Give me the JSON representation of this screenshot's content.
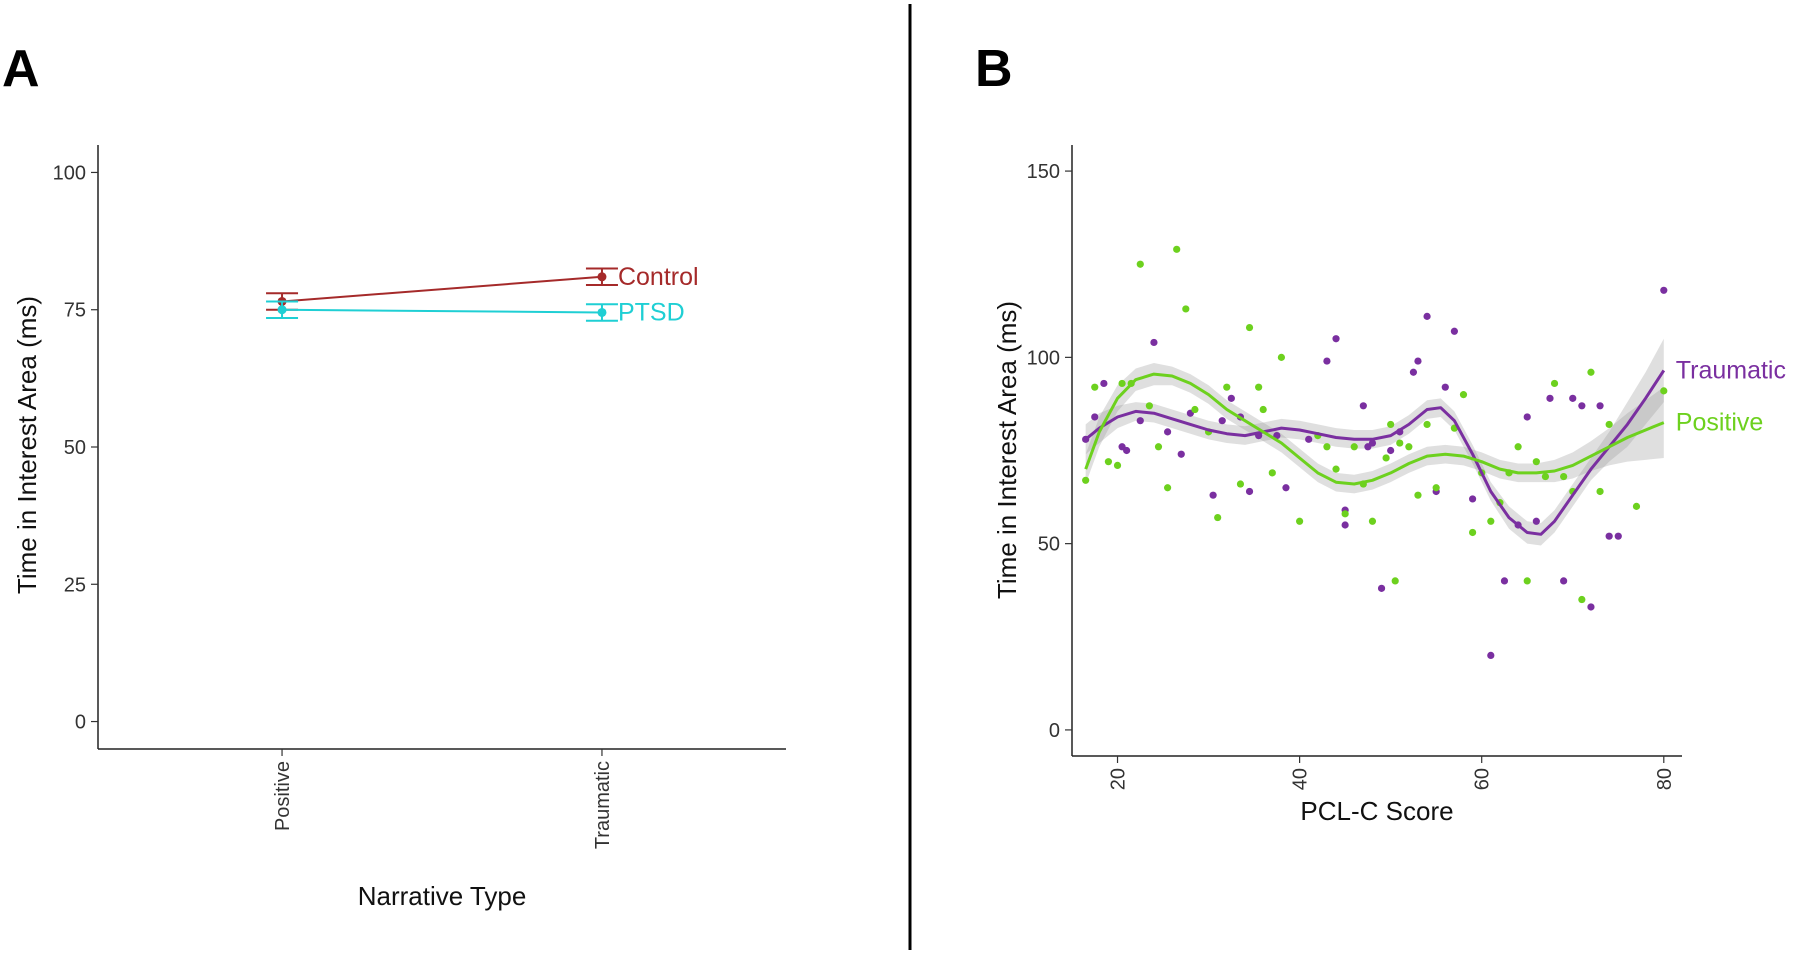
{
  "figure": {
    "divider_color": "#000000"
  },
  "chart_data": [
    {
      "panel_label": "A",
      "type": "line",
      "xlabel": "Narrative Type",
      "ylabel": "Time in Interest Area (ms)",
      "categories": [
        "Positive",
        "Traumatic"
      ],
      "ylim": [
        -5,
        105
      ],
      "yticks": [
        0,
        25,
        50,
        75,
        100
      ],
      "grid": false,
      "error_bars": true,
      "series": [
        {
          "name": "Control",
          "color": "#a52a2a",
          "values": [
            76.5,
            81
          ],
          "errors": [
            1.5,
            1.5
          ]
        },
        {
          "name": "PTSD",
          "color": "#1fcfd4",
          "values": [
            75,
            74.5
          ],
          "errors": [
            1.5,
            1.5
          ]
        }
      ]
    },
    {
      "panel_label": "B",
      "type": "scatter",
      "xlabel": "PCL-C Score",
      "ylabel": "Time in Interest Area (ms)",
      "xlim": [
        15,
        82
      ],
      "ylim": [
        -7,
        157
      ],
      "xticks": [
        20,
        40,
        60,
        80
      ],
      "yticks": [
        0,
        50,
        100,
        150
      ],
      "grid": false,
      "series": [
        {
          "name": "Traumatic",
          "color": "#7a2fa0",
          "points": [
            [
              16.5,
              78
            ],
            [
              17.5,
              84
            ],
            [
              18.5,
              93
            ],
            [
              20.5,
              76
            ],
            [
              21,
              75
            ],
            [
              22.5,
              83
            ],
            [
              24,
              104
            ],
            [
              25.5,
              80
            ],
            [
              27,
              74
            ],
            [
              28,
              85
            ],
            [
              30.5,
              63
            ],
            [
              31.5,
              83
            ],
            [
              32.5,
              89
            ],
            [
              33.5,
              84
            ],
            [
              34.5,
              64
            ],
            [
              35.5,
              79
            ],
            [
              37.5,
              79
            ],
            [
              38.5,
              65
            ],
            [
              41,
              78
            ],
            [
              43,
              99
            ],
            [
              44,
              105
            ],
            [
              45,
              59
            ],
            [
              45,
              55
            ],
            [
              47,
              87
            ],
            [
              47.5,
              76
            ],
            [
              48,
              77
            ],
            [
              49,
              38
            ],
            [
              50,
              75
            ],
            [
              51,
              80
            ],
            [
              52.5,
              96
            ],
            [
              53,
              99
            ],
            [
              54,
              111
            ],
            [
              55,
              64
            ],
            [
              56,
              92
            ],
            [
              57,
              107
            ],
            [
              59,
              62
            ],
            [
              61,
              20
            ],
            [
              62.5,
              40
            ],
            [
              64,
              55
            ],
            [
              65,
              84
            ],
            [
              66,
              56
            ],
            [
              67.5,
              89
            ],
            [
              69,
              40
            ],
            [
              70,
              89
            ],
            [
              71,
              87
            ],
            [
              72,
              33
            ],
            [
              73,
              87
            ],
            [
              74,
              52
            ],
            [
              75,
              52
            ],
            [
              80,
              118
            ]
          ],
          "fit": [
            [
              16.5,
              78
            ],
            [
              18,
              81
            ],
            [
              20,
              84
            ],
            [
              22,
              85.5
            ],
            [
              24,
              85
            ],
            [
              26,
              83.5
            ],
            [
              28,
              82
            ],
            [
              30,
              80.5
            ],
            [
              32,
              79.5
            ],
            [
              34,
              79
            ],
            [
              36,
              80
            ],
            [
              38,
              81
            ],
            [
              40,
              80.5
            ],
            [
              42,
              79.5
            ],
            [
              44,
              78.5
            ],
            [
              46,
              78
            ],
            [
              48,
              78
            ],
            [
              50,
              79
            ],
            [
              52,
              82
            ],
            [
              54,
              86
            ],
            [
              55.5,
              86.5
            ],
            [
              57,
              83
            ],
            [
              59,
              74
            ],
            [
              61,
              64
            ],
            [
              63,
              57
            ],
            [
              65,
              53
            ],
            [
              66.5,
              52.5
            ],
            [
              68,
              56
            ],
            [
              70,
              63
            ],
            [
              72,
              70
            ],
            [
              74,
              76
            ],
            [
              76,
              82
            ],
            [
              78,
              89
            ],
            [
              80,
              96.5
            ]
          ],
          "band_halfwidth": [
            4,
            4,
            3,
            2.5,
            2.5,
            2.5,
            2.5,
            2.5,
            2.5,
            2.5,
            2.5,
            2.5,
            2.5,
            2.5,
            2.5,
            2.5,
            2.5,
            2.5,
            2.5,
            2.5,
            2.5,
            2.5,
            2.5,
            2.5,
            3,
            3,
            3,
            3,
            3,
            3,
            4,
            6,
            7,
            8.5
          ]
        },
        {
          "name": "Positive",
          "color": "#6dd11e",
          "points": [
            [
              16.5,
              67
            ],
            [
              17.5,
              92
            ],
            [
              19,
              72
            ],
            [
              20,
              71
            ],
            [
              20.5,
              93
            ],
            [
              21.5,
              93
            ],
            [
              22.5,
              125
            ],
            [
              23.5,
              87
            ],
            [
              24.5,
              76
            ],
            [
              25.5,
              65
            ],
            [
              26.5,
              129
            ],
            [
              27.5,
              113
            ],
            [
              28.5,
              86
            ],
            [
              30,
              80
            ],
            [
              31,
              57
            ],
            [
              32,
              92
            ],
            [
              33.5,
              66
            ],
            [
              34.5,
              108
            ],
            [
              35.5,
              92
            ],
            [
              36,
              86
            ],
            [
              37,
              69
            ],
            [
              38,
              100
            ],
            [
              40,
              56
            ],
            [
              42,
              79
            ],
            [
              43,
              76
            ],
            [
              44,
              70
            ],
            [
              45,
              58
            ],
            [
              46,
              76
            ],
            [
              47,
              66
            ],
            [
              48,
              56
            ],
            [
              49.5,
              73
            ],
            [
              50,
              82
            ],
            [
              50.5,
              40
            ],
            [
              51,
              77
            ],
            [
              52,
              76
            ],
            [
              53,
              63
            ],
            [
              54,
              82
            ],
            [
              55,
              65
            ],
            [
              57,
              81
            ],
            [
              58,
              90
            ],
            [
              59,
              53
            ],
            [
              60,
              69
            ],
            [
              61,
              56
            ],
            [
              62,
              61
            ],
            [
              63,
              69
            ],
            [
              64,
              76
            ],
            [
              65,
              40
            ],
            [
              66,
              72
            ],
            [
              67,
              68
            ],
            [
              68,
              93
            ],
            [
              69,
              68
            ],
            [
              70,
              64
            ],
            [
              71,
              35
            ],
            [
              72,
              96
            ],
            [
              73,
              64
            ],
            [
              74,
              82
            ],
            [
              77,
              60
            ],
            [
              80,
              91
            ]
          ],
          "fit": [
            [
              16.5,
              70
            ],
            [
              18,
              80
            ],
            [
              20,
              89
            ],
            [
              22,
              94
            ],
            [
              24,
              95.5
            ],
            [
              26,
              95
            ],
            [
              28,
              93
            ],
            [
              30,
              90
            ],
            [
              32,
              86
            ],
            [
              34,
              83
            ],
            [
              36,
              80
            ],
            [
              38,
              77
            ],
            [
              40,
              73
            ],
            [
              42,
              69
            ],
            [
              44,
              66.5
            ],
            [
              46,
              66
            ],
            [
              48,
              67
            ],
            [
              50,
              69
            ],
            [
              52,
              71.5
            ],
            [
              54,
              73.5
            ],
            [
              56,
              74
            ],
            [
              58,
              73.5
            ],
            [
              60,
              72
            ],
            [
              62,
              70
            ],
            [
              64,
              69
            ],
            [
              66,
              69
            ],
            [
              68,
              69.5
            ],
            [
              70,
              71
            ],
            [
              72,
              73.5
            ],
            [
              74,
              76
            ],
            [
              76,
              78.5
            ],
            [
              78,
              80.5
            ],
            [
              80,
              82.5
            ]
          ],
          "band_halfwidth": [
            4,
            4,
            3.5,
            3,
            3,
            2.5,
            2.5,
            2.5,
            2.5,
            2.5,
            2.5,
            2.5,
            2.5,
            2.5,
            2.5,
            2.5,
            2.5,
            2.5,
            2.5,
            2.5,
            2.5,
            2.5,
            2.5,
            2.5,
            2.5,
            2.5,
            3,
            3.5,
            4,
            5,
            6.5,
            8,
            9.5
          ]
        }
      ]
    }
  ]
}
